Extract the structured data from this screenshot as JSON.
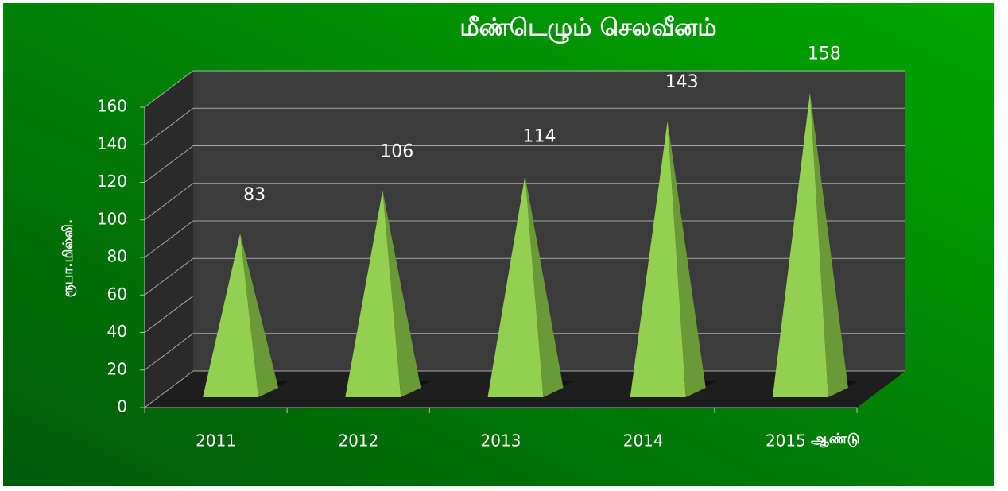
{
  "chart_data": {
    "type": "pyramid",
    "title": "மீண்டெழும் செலவீனம்",
    "y_label": "ரூபா.மில்லி.",
    "x_label": "ஆண்டு",
    "categories": [
      "2011",
      "2012",
      "2013",
      "2014",
      "2015"
    ],
    "values": [
      83,
      106,
      114,
      143,
      158
    ],
    "color": "#92d050",
    "ylim": [
      0,
      160
    ],
    "yticks": [
      0,
      20,
      40,
      60,
      80,
      100,
      120,
      140,
      160
    ],
    "grid": true
  }
}
